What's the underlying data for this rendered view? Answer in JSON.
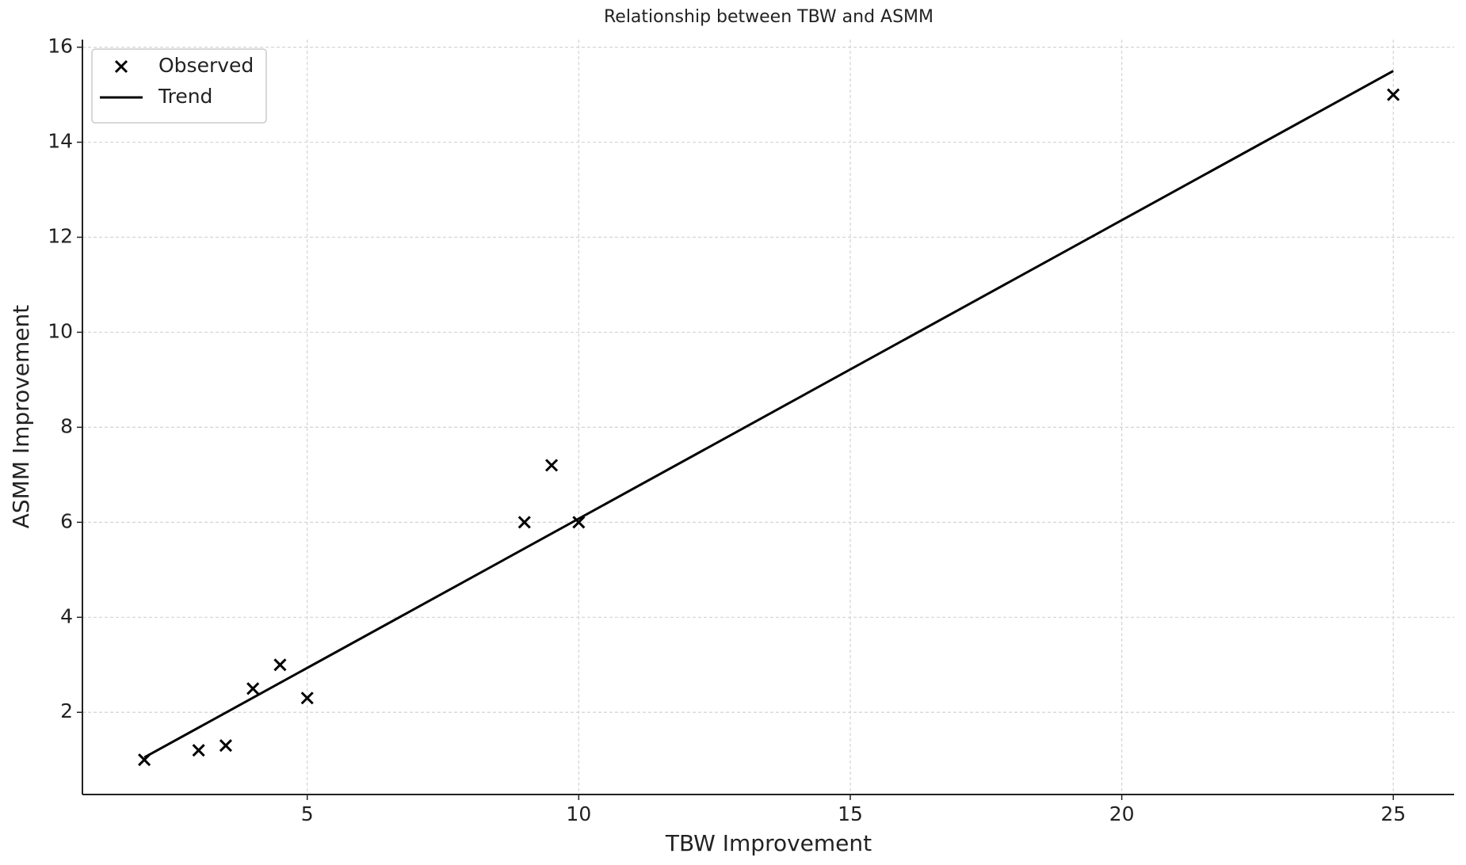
{
  "chart_data": {
    "type": "scatter",
    "title": "Relationship between TBW and ASMM",
    "x_label": "TBW Improvement",
    "y_label": "ASMM Improvement",
    "series": [
      {
        "name": "Observed",
        "type": "scatter",
        "marker": "x",
        "color": "#000000",
        "x": [
          2,
          3,
          3.5,
          4,
          4.5,
          5,
          9,
          9.5,
          10,
          25
        ],
        "values": [
          1,
          1.2,
          1.3,
          2.5,
          3,
          2.3,
          6,
          7.2,
          6,
          15
        ]
      },
      {
        "name": "Trend",
        "type": "line",
        "color": "#000000",
        "x": [
          2,
          25
        ],
        "values": [
          1.05,
          15.5
        ]
      }
    ],
    "xlim": [
      0.86,
      26.12
    ],
    "xticks": [
      5,
      10,
      15,
      20,
      25
    ],
    "ylim": [
      0.27,
      16.16
    ],
    "yticks": [
      2,
      4,
      6,
      8,
      10,
      12,
      14,
      16
    ],
    "grid": true,
    "legend": "upper left"
  }
}
